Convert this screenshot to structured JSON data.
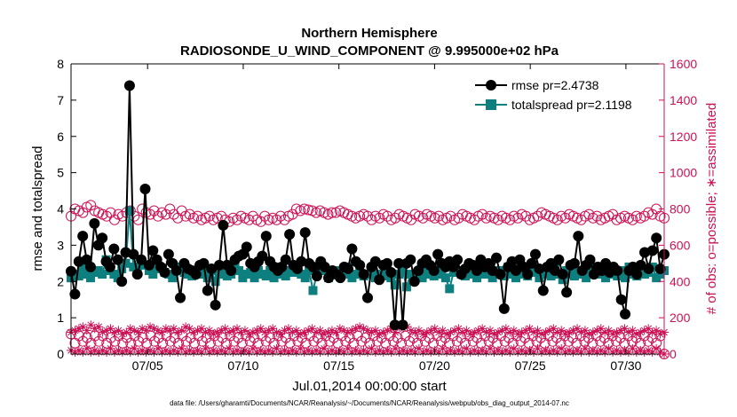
{
  "chart_data": {
    "type": "line",
    "title_line1": "Northern Hemisphere",
    "title_line2": "RADIOSONDE_U_WIND_COMPONENT @ 9.995000e+02 hPa",
    "xlabel": "Jul.01,2014 00:00:00 start",
    "ylabel_left": "rmse and totalspread",
    "ylabel_right": "# of obs: o=possible; ∗=assimilated",
    "footer": "data file: /Users/gharamti/Documents/NCAR/Reanalysis/~/Documents/NCAR/Reanalysis/webpub/obs_diag_output_2014-07.nc",
    "x_range_days": [
      1,
      32
    ],
    "x_ticks": [
      {
        "day": 5,
        "label": "07/05"
      },
      {
        "day": 10,
        "label": "07/10"
      },
      {
        "day": 15,
        "label": "07/15"
      },
      {
        "day": 20,
        "label": "07/20"
      },
      {
        "day": 25,
        "label": "07/25"
      },
      {
        "day": 30,
        "label": "07/30"
      }
    ],
    "y_left_range": [
      0,
      8
    ],
    "y_left_ticks": [
      "0",
      "1",
      "2",
      "3",
      "4",
      "5",
      "6",
      "7",
      "8"
    ],
    "y_right_range": [
      0,
      1600
    ],
    "y_right_ticks": [
      "0",
      "200",
      "400",
      "600",
      "800",
      "1000",
      "1200",
      "1400",
      "1600"
    ],
    "legend_location": "top-right",
    "colors": {
      "rmse": "#000000",
      "totalspread": "#0e7f7f",
      "obs": "#cc1155"
    },
    "series": [
      {
        "name": "rmse",
        "legend": "rmse pr=2.4738",
        "values": [
          2.28,
          1.65,
          2.55,
          3.25,
          2.6,
          2.4,
          3.6,
          3.0,
          3.2,
          2.55,
          2.4,
          2.9,
          2.6,
          2.0,
          2.8,
          7.4,
          2.75,
          2.2,
          2.6,
          4.55,
          2.45,
          2.85,
          2.6,
          2.4,
          2.25,
          2.75,
          2.5,
          2.3,
          1.55,
          2.5,
          2.35,
          2.3,
          2.2,
          2.45,
          2.5,
          1.75,
          2.35,
          1.35,
          2.45,
          3.55,
          2.45,
          2.3,
          2.6,
          2.7,
          2.75,
          2.95,
          2.5,
          2.4,
          2.55,
          2.7,
          3.25,
          2.55,
          2.4,
          2.3,
          2.4,
          2.6,
          3.3,
          2.45,
          2.35,
          2.55,
          3.35,
          2.5,
          2.4,
          2.15,
          2.55,
          2.4,
          2.1,
          2.3,
          2.2,
          2.1,
          2.4,
          2.35,
          2.9,
          2.55,
          2.45,
          2.2,
          1.55,
          2.4,
          2.55,
          2.05,
          2.45,
          2.5,
          2.25,
          0.8,
          2.5,
          0.8,
          2.5,
          2.6,
          2.0,
          2.3,
          2.5,
          2.6,
          2.45,
          2.3,
          2.75,
          2.5,
          2.4,
          2.55,
          2.4,
          2.6,
          2.2,
          2.35,
          2.5,
          2.45,
          2.3,
          2.6,
          2.4,
          2.5,
          2.3,
          2.65,
          2.2,
          1.25,
          2.4,
          2.55,
          2.3,
          2.6,
          2.4,
          2.2,
          2.5,
          2.75,
          2.35,
          1.75,
          2.4,
          2.5,
          2.3,
          2.6,
          2.2,
          1.7,
          2.45,
          2.5,
          3.25,
          2.3,
          2.45,
          2.6,
          2.2,
          2.4,
          2.3,
          2.5,
          2.25,
          2.4,
          2.3,
          1.5,
          1.1,
          2.3,
          2.4,
          2.2,
          2.45,
          2.8,
          2.35,
          2.85,
          3.2,
          2.35,
          2.75
        ]
      },
      {
        "name": "totalspread",
        "legend": "totalspread pr=2.1198",
        "values": [
          2.1,
          2.2,
          2.15,
          2.4,
          2.2,
          2.1,
          2.25,
          2.3,
          2.2,
          2.6,
          2.3,
          2.2,
          2.1,
          2.35,
          2.5,
          3.95,
          2.4,
          2.3,
          2.5,
          2.45,
          2.3,
          2.2,
          2.4,
          2.35,
          2.25,
          2.2,
          2.1,
          2.3,
          2.4,
          2.25,
          2.2,
          2.15,
          2.3,
          2.2,
          2.25,
          2.1,
          2.3,
          2.0,
          2.2,
          2.3,
          2.15,
          2.2,
          2.4,
          2.3,
          2.1,
          2.2,
          2.25,
          2.1,
          2.3,
          2.2,
          2.15,
          2.3,
          2.1,
          2.4,
          2.2,
          2.15,
          2.3,
          2.25,
          2.4,
          2.2,
          2.1,
          2.3,
          1.75,
          2.2,
          2.4,
          2.3,
          2.1,
          2.2,
          2.3,
          2.15,
          2.2,
          2.4,
          2.1,
          2.2,
          2.3,
          2.15,
          2.2,
          2.35,
          2.1,
          2.2,
          2.15,
          2.3,
          2.1,
          1.9,
          2.2,
          2.3,
          1.85,
          2.2,
          2.15,
          2.25,
          2.1,
          2.3,
          2.2,
          2.15,
          2.4,
          2.2,
          2.1,
          1.8,
          2.25,
          2.3,
          2.2,
          2.15,
          2.4,
          2.2,
          2.1,
          2.3,
          2.2,
          2.35,
          2.1,
          2.2,
          2.3,
          2.15,
          2.4,
          2.2,
          2.1,
          2.35,
          2.2,
          2.15,
          2.3,
          2.25,
          2.1,
          2.3,
          2.2,
          2.15,
          2.4,
          2.2,
          2.05,
          2.3,
          2.2,
          2.15,
          2.3,
          2.2,
          2.1,
          2.35,
          2.4,
          2.25,
          2.2,
          2.1,
          2.3,
          2.2,
          2.15,
          2.3,
          2.1,
          2.4,
          2.2,
          2.15,
          2.3,
          2.2,
          2.25,
          2.4,
          2.1,
          2.2,
          2.3
        ]
      }
    ],
    "obs_possible_upper": [
      760,
      800,
      790,
      780,
      810,
      820,
      790,
      780,
      770,
      760,
      780,
      740,
      770,
      760,
      780,
      790,
      760,
      740,
      800,
      780,
      770,
      790,
      760,
      780,
      770,
      800,
      770,
      750,
      790,
      760,
      770,
      750,
      760,
      740,
      750,
      760,
      740,
      750,
      760,
      740,
      730,
      750,
      740,
      760,
      750,
      740,
      760,
      740,
      730,
      760,
      740,
      750,
      740,
      760,
      740,
      760,
      770,
      800,
      790,
      800,
      795,
      790,
      780,
      790,
      780,
      770,
      780,
      780,
      790,
      780,
      770,
      760,
      750,
      760,
      770,
      760,
      740,
      760,
      750,
      770,
      760,
      740,
      750,
      770,
      760,
      750,
      740,
      770,
      760,
      750,
      770,
      760,
      750,
      760,
      740,
      750,
      760,
      740,
      750,
      770,
      760,
      750,
      740,
      760,
      770,
      750,
      760,
      750,
      740,
      760,
      750,
      740,
      760,
      750,
      770,
      760,
      740,
      750,
      760,
      780,
      770,
      760,
      750,
      740,
      760,
      750,
      770,
      760,
      750,
      740,
      760,
      770,
      750,
      760,
      740,
      750,
      760,
      770,
      740,
      750,
      760,
      750,
      740,
      760,
      750,
      760,
      780,
      770,
      800,
      760,
      750
    ],
    "obs_possible_lower": [
      110,
      60,
      100,
      70,
      90,
      60,
      100,
      70,
      100,
      60,
      90,
      70,
      100,
      60,
      90,
      60,
      100,
      70,
      90,
      60,
      100,
      70,
      90,
      60,
      100,
      70,
      90,
      60,
      100,
      70,
      90,
      60,
      100,
      70,
      90,
      60,
      100,
      70,
      90,
      60,
      100,
      70,
      90,
      60,
      100,
      70,
      90,
      60,
      100,
      70,
      90,
      60,
      100,
      70,
      90,
      60,
      100,
      70,
      90,
      60,
      100,
      70,
      90,
      60,
      100,
      70,
      90,
      60,
      100,
      70,
      90,
      60,
      100,
      70,
      90,
      60,
      100,
      70,
      90,
      60,
      100,
      70,
      90,
      60,
      100,
      70,
      90,
      60,
      100,
      70,
      90,
      60,
      100,
      70,
      90,
      60,
      100,
      70,
      90,
      60,
      100,
      70,
      90,
      60,
      100,
      70,
      90,
      60,
      100,
      70,
      90,
      60,
      100,
      70,
      90,
      60,
      100,
      70,
      90,
      60,
      100,
      70,
      90,
      60,
      100,
      70,
      90,
      60,
      100,
      70,
      90,
      60,
      100,
      70,
      90,
      60,
      100,
      70,
      90,
      60,
      100,
      70,
      90,
      60,
      100,
      70,
      90,
      60,
      100,
      0
    ],
    "obs_assim_upper": [
      120,
      130,
      140,
      150,
      130,
      160,
      140,
      150,
      120,
      130,
      140,
      120,
      130,
      110,
      120,
      140,
      130,
      120,
      140,
      130,
      150,
      140,
      130,
      120,
      140,
      130,
      140,
      120,
      130,
      150,
      140,
      120,
      130,
      140,
      120,
      130,
      110,
      120,
      130,
      140,
      120,
      130,
      140,
      120,
      130,
      110,
      120,
      130,
      140,
      120,
      130,
      140,
      120,
      110,
      130,
      140,
      120,
      130,
      110,
      120,
      130,
      140,
      120,
      130,
      110,
      120,
      130,
      120,
      140,
      130,
      120,
      130,
      140,
      150,
      140,
      130,
      120,
      130,
      110,
      120,
      130,
      140,
      120,
      150,
      140,
      150,
      130,
      120,
      130,
      110,
      120,
      130,
      140,
      120,
      130,
      110,
      120,
      130,
      140,
      120,
      130,
      110,
      120,
      130,
      140,
      120,
      130,
      110,
      120,
      130,
      140,
      120,
      130,
      110,
      120,
      130,
      140,
      120,
      130,
      110,
      120,
      130,
      140,
      120,
      130,
      110,
      120,
      130,
      140,
      120,
      130,
      110,
      120,
      130,
      140,
      120,
      130,
      110,
      120,
      130,
      140,
      120,
      130,
      110,
      120,
      130,
      140,
      120,
      130,
      110,
      120
    ],
    "obs_assim_lower": [
      20,
      10,
      20,
      10,
      30,
      10,
      20,
      10,
      20,
      10,
      30,
      10,
      20,
      10,
      20,
      10,
      30,
      10,
      20,
      10,
      20,
      10,
      30,
      10,
      20,
      10,
      20,
      10,
      30,
      10,
      20,
      10,
      20,
      10,
      30,
      10,
      20,
      10,
      20,
      10,
      30,
      10,
      20,
      10,
      20,
      10,
      30,
      10,
      20,
      10,
      20,
      10,
      30,
      10,
      20,
      10,
      20,
      10,
      30,
      10,
      20,
      10,
      20,
      10,
      30,
      10,
      20,
      10,
      20,
      10,
      30,
      10,
      20,
      10,
      20,
      10,
      30,
      10,
      20,
      10,
      20,
      10,
      30,
      10,
      20,
      10,
      20,
      10,
      30,
      10,
      20,
      10,
      20,
      10,
      30,
      10,
      20,
      10,
      20,
      10,
      30,
      10,
      20,
      10,
      20,
      10,
      30,
      10,
      20,
      10,
      20,
      10,
      30,
      10,
      20,
      10,
      20,
      10,
      30,
      10,
      20,
      10,
      20,
      10,
      30,
      10,
      20,
      10,
      20,
      10,
      30,
      10,
      20,
      10,
      20,
      10,
      30,
      10,
      20,
      10,
      20,
      10,
      30,
      10,
      20,
      10,
      20,
      10,
      30,
      10,
      0
    ]
  }
}
